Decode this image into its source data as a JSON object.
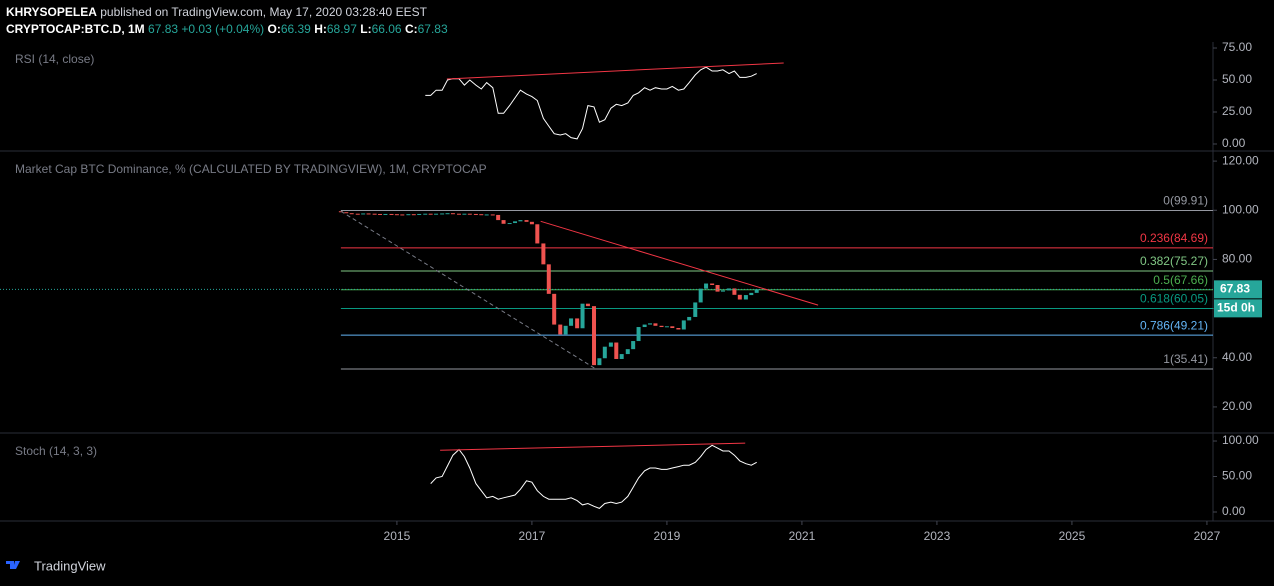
{
  "header": {
    "author": "KHRYSOPELEA",
    "published": "published on TradingView.com, May 17, 2020 03:28:40 EEST",
    "symbol": "CRYPTOCAP:BTC.D, 1M",
    "last": "67.83",
    "change": "+0.03 (+0.04%)",
    "o_label": "O:",
    "o": "66.39",
    "h_label": "H:",
    "h": "68.97",
    "l_label": "L:",
    "l": "66.06",
    "c_label": "C:",
    "c": "67.83"
  },
  "time_axis": {
    "xlim": [
      2009.12,
      2027.09
    ],
    "xticks": [
      2015,
      2017,
      2019,
      2021,
      2023,
      2025,
      2027
    ]
  },
  "footer": {
    "brand": "TradingView"
  },
  "chart_data": [
    {
      "type": "line",
      "title": "RSI (14, close)",
      "color": "#ffffff",
      "ylim": [
        -4.7,
        79.7
      ],
      "yticks": [
        {
          "value": 0,
          "label": "0.00"
        },
        {
          "value": 25,
          "label": "25.00"
        },
        {
          "value": 50,
          "label": "50.00"
        },
        {
          "value": 75,
          "label": "75.00"
        }
      ],
      "x": [
        2015.42,
        2015.5,
        2015.58,
        2015.67,
        2015.75,
        2015.83,
        2015.92,
        2016.0,
        2016.08,
        2016.17,
        2016.25,
        2016.33,
        2016.42,
        2016.5,
        2016.58,
        2016.67,
        2016.75,
        2016.83,
        2016.92,
        2017.0,
        2017.08,
        2017.17,
        2017.25,
        2017.33,
        2017.42,
        2017.5,
        2017.58,
        2017.67,
        2017.75,
        2017.83,
        2017.92,
        2018.0,
        2018.08,
        2018.17,
        2018.25,
        2018.33,
        2018.42,
        2018.5,
        2018.58,
        2018.67,
        2018.75,
        2018.83,
        2018.92,
        2019.0,
        2019.08,
        2019.17,
        2019.25,
        2019.33,
        2019.42,
        2019.5,
        2019.58,
        2019.67,
        2019.75,
        2019.83,
        2019.92,
        2020.0,
        2020.08,
        2020.17,
        2020.25,
        2020.33
      ],
      "values": [
        38,
        38,
        42,
        42,
        50,
        51,
        51,
        46,
        50,
        46,
        43,
        48,
        44,
        24,
        24,
        30,
        36,
        42,
        39,
        37,
        34,
        20,
        14,
        8,
        7,
        8,
        5,
        4,
        12,
        30,
        29,
        17,
        19,
        28,
        31,
        30,
        32,
        38,
        40,
        44,
        42,
        44,
        43,
        43,
        45,
        42,
        43,
        48,
        54,
        58,
        60,
        57,
        57,
        58,
        55,
        57,
        52,
        52,
        53,
        55
      ],
      "trendlines": [
        {
          "x": [
            2015.74,
            2020.73
          ],
          "y": [
            50.8,
            63.3
          ],
          "color": "#f23645"
        }
      ]
    },
    {
      "type": "candlestick",
      "title": "Market Cap BTC Dominance, % (CALCULATED BY TRADINGVIEW), 1M, CRYPTOCAP",
      "up_color": "#26a69a",
      "down_color": "#ef5350",
      "countdown": "15d 0h",
      "ylim": [
        9.8,
        123.7
      ],
      "yticks": [
        {
          "value": 20,
          "label": "20.00"
        },
        {
          "value": 40,
          "label": "40.00"
        },
        {
          "value": 60,
          "label": "60.00"
        },
        {
          "value": 80,
          "label": "80.00"
        },
        {
          "value": 100,
          "label": "100.00"
        },
        {
          "value": 120,
          "label": "120.00"
        }
      ],
      "x": [
        2014.17,
        2014.25,
        2014.33,
        2014.42,
        2014.5,
        2014.58,
        2014.67,
        2014.75,
        2014.83,
        2014.92,
        2015.0,
        2015.08,
        2015.17,
        2015.25,
        2015.33,
        2015.42,
        2015.5,
        2015.58,
        2015.67,
        2015.75,
        2015.83,
        2015.92,
        2016.0,
        2016.08,
        2016.17,
        2016.25,
        2016.33,
        2016.42,
        2016.5,
        2016.58,
        2016.67,
        2016.75,
        2016.83,
        2016.92,
        2017.0,
        2017.08,
        2017.17,
        2017.25,
        2017.33,
        2017.42,
        2017.5,
        2017.58,
        2017.67,
        2017.75,
        2017.83,
        2017.92,
        2018.0,
        2018.08,
        2018.17,
        2018.25,
        2018.33,
        2018.42,
        2018.5,
        2018.58,
        2018.67,
        2018.75,
        2018.83,
        2018.92,
        2019.0,
        2019.08,
        2019.17,
        2019.25,
        2019.33,
        2019.42,
        2019.5,
        2019.58,
        2019.67,
        2019.75,
        2019.83,
        2019.92,
        2020.0,
        2020.08,
        2020.17,
        2020.25,
        2020.33
      ],
      "open": [
        99.6,
        99.2,
        98.8,
        98.6,
        98.5,
        98.7,
        98.6,
        98.5,
        98.4,
        98.5,
        98.4,
        98.3,
        98.2,
        98.4,
        98.3,
        98.5,
        98.6,
        98.4,
        98.6,
        98.7,
        98.8,
        98.6,
        98.5,
        98.6,
        98.5,
        98.4,
        98.2,
        98.3,
        98.1,
        96.0,
        94.5,
        94.8,
        95.5,
        96.0,
        95.3,
        94.3,
        86.5,
        78,
        66,
        53.5,
        49.5,
        53,
        56,
        52,
        62,
        61,
        37,
        39.8,
        44.5,
        46.2,
        39.5,
        41.5,
        43.5,
        46.8,
        52.5,
        53.5,
        54.0,
        53.0,
        52.5,
        52.8,
        52.1,
        51.5,
        55.2,
        56.6,
        62.5,
        68.1,
        70.2,
        69.6,
        66.9,
        67.4,
        68.2,
        65.6,
        63.7,
        65.5,
        66.4
      ],
      "close": [
        99.2,
        98.8,
        98.6,
        98.5,
        98.7,
        98.6,
        98.5,
        98.4,
        98.5,
        98.4,
        98.3,
        98.2,
        98.4,
        98.3,
        98.5,
        98.6,
        98.4,
        98.6,
        98.7,
        98.8,
        98.6,
        98.5,
        98.6,
        98.5,
        98.4,
        98.2,
        98.3,
        98.1,
        96.0,
        94.5,
        94.8,
        95.5,
        96.0,
        95.3,
        94.3,
        86.5,
        78,
        66,
        53.5,
        49.5,
        53,
        56,
        52,
        62,
        61,
        37,
        39.8,
        44.5,
        46.2,
        39.5,
        41.5,
        43.5,
        46.8,
        52.5,
        53.5,
        54.0,
        53.0,
        52.5,
        52.8,
        52.1,
        51.5,
        55.2,
        56.6,
        62.5,
        68.1,
        70.2,
        69.6,
        66.9,
        67.4,
        68.2,
        65.6,
        63.7,
        65.5,
        66.4,
        67.83
      ],
      "fib_levels": [
        {
          "label": "0(99.91)",
          "value": 99.91,
          "color": "#9598a1"
        },
        {
          "label": "0.236(84.69)",
          "value": 84.69,
          "color": "#f23645"
        },
        {
          "label": "0.382(75.27)",
          "value": 75.27,
          "color": "#81c784"
        },
        {
          "label": "0.5(67.66)",
          "value": 67.66,
          "color": "#4caf50"
        },
        {
          "label": "0.618(60.05)",
          "value": 60.05,
          "color": "#089981"
        },
        {
          "label": "0.786(49.21)",
          "value": 49.21,
          "color": "#64b5f6"
        },
        {
          "label": "1(35.41)",
          "value": 35.41,
          "color": "#9598a1"
        }
      ],
      "trendlines": [
        {
          "x": [
            2017.13,
            2021.24
          ],
          "y": [
            95.5,
            61.4
          ],
          "color": "#f23645"
        },
        {
          "x": [
            2014.17,
            2017.95
          ],
          "y": [
            99.6,
            35.4
          ],
          "color": "#787b86",
          "dashed": true
        }
      ]
    },
    {
      "type": "line",
      "title": "Stoch (14, 3, 3)",
      "color": "#ffffff",
      "ylim": [
        -12.7,
        109.9
      ],
      "yticks": [
        {
          "value": 0,
          "label": "0.00"
        },
        {
          "value": 50,
          "label": "50.00"
        },
        {
          "value": 100,
          "label": "100.00"
        }
      ],
      "x": [
        2015.5,
        2015.58,
        2015.67,
        2015.75,
        2015.83,
        2015.92,
        2016.0,
        2016.08,
        2016.17,
        2016.25,
        2016.33,
        2016.42,
        2016.5,
        2016.58,
        2016.67,
        2016.75,
        2016.83,
        2016.92,
        2017.0,
        2017.08,
        2017.17,
        2017.25,
        2017.33,
        2017.42,
        2017.5,
        2017.58,
        2017.67,
        2017.75,
        2017.83,
        2017.92,
        2018.0,
        2018.08,
        2018.17,
        2018.25,
        2018.33,
        2018.42,
        2018.5,
        2018.58,
        2018.67,
        2018.75,
        2018.83,
        2018.92,
        2019.0,
        2019.08,
        2019.17,
        2019.25,
        2019.33,
        2019.42,
        2019.5,
        2019.58,
        2019.67,
        2019.75,
        2019.83,
        2019.92,
        2020.0,
        2020.08,
        2020.17,
        2020.25,
        2020.33
      ],
      "values": [
        40,
        48,
        50,
        65,
        80,
        88,
        78,
        62,
        40,
        30,
        20,
        22,
        18,
        20,
        22,
        24,
        32,
        44,
        42,
        30,
        22,
        18,
        18,
        18,
        18,
        20,
        16,
        10,
        12,
        8,
        5,
        12,
        14,
        12,
        14,
        22,
        35,
        48,
        58,
        62,
        62,
        60,
        60,
        62,
        64,
        66,
        66,
        70,
        78,
        88,
        94,
        90,
        86,
        86,
        80,
        72,
        68,
        66,
        70
      ],
      "trendlines": [
        {
          "x": [
            2015.64,
            2020.16
          ],
          "y": [
            87,
            97
          ],
          "color": "#f23645"
        }
      ]
    }
  ]
}
